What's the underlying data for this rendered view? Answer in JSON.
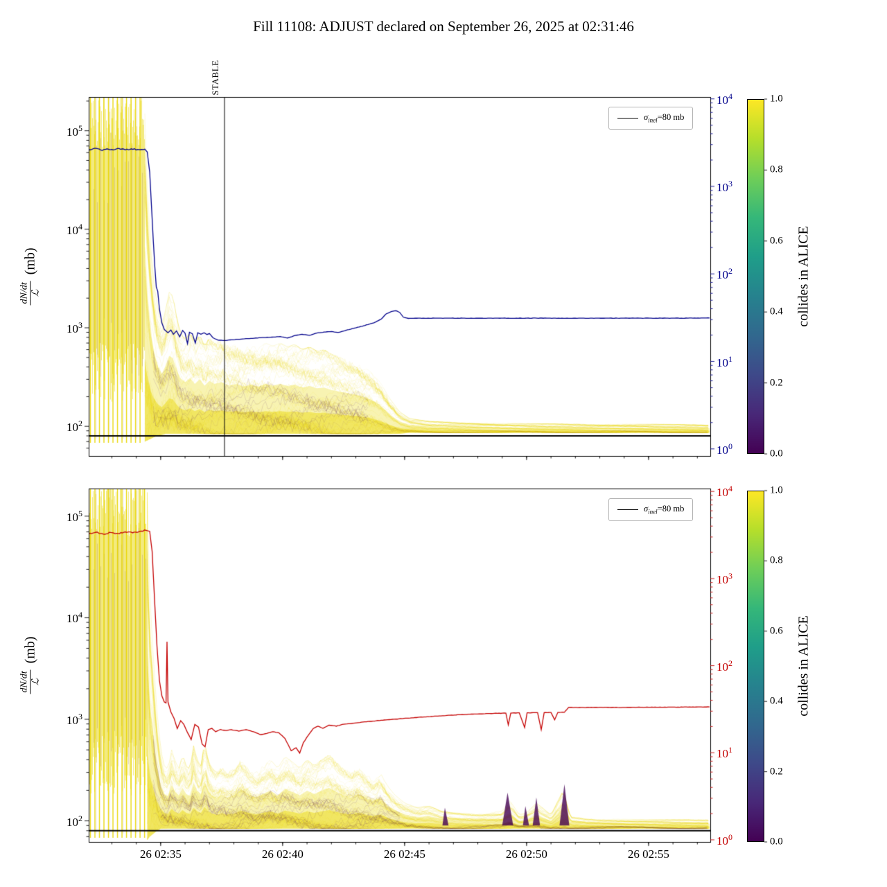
{
  "title": "Fill 11108: ADJUST declared on September 26, 2025 at 02:31:46",
  "ylabel": {
    "numerator": "dN/dt",
    "denominator": "ℒ",
    "unit": "(mb)"
  },
  "stable_label": "STABLE",
  "legend": {
    "symbol": "σ",
    "subscript": "inel",
    "suffix": "=80 mb"
  },
  "colorbar": {
    "label": "collides in ALICE",
    "tick_labels": [
      "0.0",
      "0.2",
      "0.4",
      "0.6",
      "0.8",
      "1.0"
    ],
    "gradient": [
      "#440154",
      "#482878",
      "#3e4989",
      "#31688e",
      "#26828e",
      "#1f9e89",
      "#35b779",
      "#6ece58",
      "#b5de2b",
      "#fde725"
    ]
  },
  "x_axis": {
    "minor_dt": 1,
    "ticks": [
      {
        "t": 5,
        "label": "26 02:35"
      },
      {
        "t": 10,
        "label": "26 02:40"
      },
      {
        "t": 15,
        "label": "26 02:45"
      },
      {
        "t": 20,
        "label": "26 02:50"
      },
      {
        "t": 25,
        "label": "26 02:55"
      }
    ]
  },
  "chart_data": [
    {
      "type": "line",
      "name": "top-panel",
      "x_unit": "minutes after 02:30",
      "xlim": [
        2.05,
        27.53
      ],
      "yscale": "log",
      "ylim": [
        50,
        220000
      ],
      "ylim_right": [
        0.83,
        10500
      ],
      "left_tick_exps": [
        2,
        3,
        4,
        5
      ],
      "right_tick_exps": [
        0,
        1,
        2,
        3,
        4
      ],
      "right_color": "#00008b",
      "hline": {
        "v": 80,
        "color": "#000000",
        "width": 2.2
      },
      "vline": {
        "t": 7.617
      },
      "chaos": {
        "t_end": 4.33,
        "stripe_dt": 0.185,
        "stripe_v_lo": 68
      },
      "band": {
        "yellow": "#e8d600",
        "dark": "#440154",
        "t": [
          4.35,
          4.45,
          4.6,
          4.75,
          4.9,
          5.05,
          5.2,
          5.35,
          5.5,
          5.65,
          5.8,
          6.0,
          6.2,
          6.4,
          6.6,
          6.8,
          7.0,
          7.2,
          7.5,
          7.8,
          8.1,
          8.4,
          8.7,
          9.0,
          9.3,
          9.6,
          9.9,
          10.2,
          10.5,
          10.8,
          11.1,
          11.4,
          11.7,
          12.0,
          12.4,
          12.8,
          13.2,
          13.6,
          14.0,
          14.4,
          14.8,
          15.2,
          16,
          17,
          19,
          21,
          23,
          25,
          27.5
        ],
        "hi": [
          150000,
          30000,
          6000,
          2500,
          1500,
          1100,
          1500,
          2300,
          2100,
          1300,
          900,
          750,
          900,
          700,
          850,
          650,
          800,
          700,
          750,
          650,
          700,
          620,
          680,
          620,
          700,
          650,
          700,
          640,
          680,
          600,
          640,
          580,
          600,
          540,
          500,
          460,
          420,
          360,
          280,
          190,
          140,
          120,
          112,
          110,
          107,
          106,
          105,
          105,
          104
        ],
        "lo": [
          70,
          72,
          75,
          78,
          80,
          82,
          84,
          84,
          84,
          84,
          84,
          84,
          84,
          84,
          84,
          84,
          84,
          84,
          84,
          84,
          84,
          84,
          84,
          84,
          84,
          84,
          84,
          84,
          84,
          84,
          84,
          84,
          84,
          84,
          84,
          84,
          84,
          84,
          84,
          84,
          84,
          86,
          86,
          86,
          86,
          86,
          86,
          86,
          86
        ]
      },
      "main_line": {
        "color": "#00008b",
        "width": 1.3,
        "points": [
          [
            2.05,
            64000
          ],
          [
            2.3,
            66500
          ],
          [
            2.55,
            63500
          ],
          [
            2.8,
            65500
          ],
          [
            3.05,
            64000
          ],
          [
            3.3,
            66000
          ],
          [
            3.55,
            64000
          ],
          [
            3.8,
            65500
          ],
          [
            4.05,
            64500
          ],
          [
            4.35,
            65000
          ],
          [
            4.45,
            61000
          ],
          [
            4.55,
            38000
          ],
          [
            4.63,
            16000
          ],
          [
            4.7,
            7500
          ],
          [
            4.76,
            4200
          ],
          [
            4.82,
            2600
          ],
          [
            4.88,
            2350
          ],
          [
            4.95,
            1550
          ],
          [
            5.05,
            1120
          ],
          [
            5.15,
            960
          ],
          [
            5.3,
            890
          ],
          [
            5.42,
            950
          ],
          [
            5.52,
            860
          ],
          [
            5.65,
            930
          ],
          [
            5.78,
            810
          ],
          [
            5.9,
            940
          ],
          [
            6.0,
            880
          ],
          [
            6.1,
            690
          ],
          [
            6.18,
            900
          ],
          [
            6.3,
            870
          ],
          [
            6.42,
            700
          ],
          [
            6.52,
            890
          ],
          [
            6.65,
            860
          ],
          [
            6.78,
            890
          ],
          [
            6.9,
            855
          ],
          [
            7.0,
            875
          ],
          [
            7.15,
            790
          ],
          [
            7.35,
            750
          ],
          [
            7.62,
            742
          ],
          [
            7.9,
            755
          ],
          [
            8.3,
            768
          ],
          [
            8.7,
            780
          ],
          [
            9.1,
            792
          ],
          [
            9.5,
            802
          ],
          [
            9.9,
            815
          ],
          [
            10.2,
            788
          ],
          [
            10.5,
            835
          ],
          [
            10.8,
            858
          ],
          [
            11.1,
            838
          ],
          [
            11.4,
            885
          ],
          [
            11.7,
            905
          ],
          [
            12.0,
            915
          ],
          [
            12.3,
            898
          ],
          [
            12.6,
            945
          ],
          [
            12.9,
            985
          ],
          [
            13.2,
            1030
          ],
          [
            13.5,
            1080
          ],
          [
            13.8,
            1140
          ],
          [
            14.05,
            1230
          ],
          [
            14.25,
            1390
          ],
          [
            14.45,
            1460
          ],
          [
            14.65,
            1490
          ],
          [
            14.8,
            1430
          ],
          [
            14.95,
            1280
          ],
          [
            15.15,
            1245
          ],
          [
            15.5,
            1250
          ],
          [
            16.5,
            1252
          ],
          [
            18,
            1250
          ],
          [
            20,
            1253
          ],
          [
            22,
            1250
          ],
          [
            24,
            1252
          ],
          [
            26,
            1251
          ],
          [
            27.5,
            1258
          ]
        ]
      }
    },
    {
      "type": "line",
      "name": "bottom-panel",
      "x_unit": "minutes after 02:30",
      "xlim": [
        2.05,
        27.53
      ],
      "yscale": "log",
      "ylim": [
        62,
        187000
      ],
      "ylim_right": [
        0.945,
        10800
      ],
      "left_tick_exps": [
        2,
        3,
        4,
        5
      ],
      "right_tick_exps": [
        0,
        1,
        2,
        3,
        4
      ],
      "right_color": "#c40000",
      "hline": {
        "v": 80,
        "color": "#000000",
        "width": 2.2
      },
      "chaos": {
        "t_end": 4.45,
        "stripe_dt": 0.185,
        "stripe_v_lo": 68
      },
      "band": {
        "yellow": "#e8d600",
        "dark": "#440154",
        "t": [
          4.45,
          4.55,
          4.7,
          4.85,
          5.0,
          5.15,
          5.3,
          5.45,
          5.6,
          5.75,
          5.9,
          6.05,
          6.2,
          6.35,
          6.5,
          6.65,
          6.8,
          6.95,
          7.1,
          7.3,
          7.5,
          7.7,
          8.0,
          8.3,
          8.6,
          8.9,
          9.2,
          9.5,
          9.8,
          10.1,
          10.4,
          10.7,
          11.0,
          11.3,
          11.6,
          11.9,
          12.2,
          12.5,
          12.8,
          13.1,
          13.4,
          13.7,
          14.0,
          14.3,
          14.6,
          15.0,
          15.5,
          16.0,
          16.5,
          17,
          18,
          19,
          19.3,
          19.7,
          20,
          20.4,
          21,
          21.5,
          21.8,
          22.5,
          23.5,
          25,
          27.5
        ],
        "hi": [
          150000,
          20000,
          4000,
          1200,
          500,
          350,
          320,
          500,
          380,
          330,
          450,
          350,
          320,
          550,
          400,
          350,
          600,
          400,
          330,
          300,
          340,
          300,
          330,
          420,
          350,
          300,
          350,
          400,
          330,
          430,
          380,
          330,
          400,
          350,
          400,
          450,
          380,
          330,
          300,
          350,
          300,
          260,
          300,
          220,
          180,
          150,
          135,
          140,
          125,
          120,
          118,
          125,
          160,
          115,
          120,
          150,
          115,
          200,
          110,
          105,
          104,
          103,
          103
        ],
        "lo": [
          65,
          70,
          75,
          80,
          84,
          84,
          84,
          84,
          84,
          84,
          84,
          84,
          84,
          84,
          84,
          84,
          84,
          84,
          84,
          84,
          84,
          84,
          84,
          84,
          84,
          84,
          84,
          84,
          84,
          84,
          84,
          84,
          84,
          84,
          84,
          84,
          84,
          84,
          84,
          84,
          84,
          84,
          84,
          84,
          84,
          84,
          84,
          84,
          84,
          84,
          84,
          84,
          84,
          84,
          84,
          84,
          84,
          84,
          84,
          84,
          84,
          84,
          84
        ]
      },
      "spikes": [
        {
          "t": [
            16.55,
            16.65,
            16.8
          ],
          "v": [
            90,
            135,
            90
          ]
        },
        {
          "t": [
            19.0,
            19.22,
            19.45
          ],
          "v": [
            90,
            190,
            90
          ]
        },
        {
          "t": [
            19.85,
            19.95,
            20.1
          ],
          "v": [
            90,
            140,
            90
          ]
        },
        {
          "t": [
            20.25,
            20.4,
            20.55
          ],
          "v": [
            90,
            170,
            90
          ]
        },
        {
          "t": [
            21.35,
            21.55,
            21.75
          ],
          "v": [
            90,
            230,
            90
          ]
        }
      ],
      "main_line": {
        "color": "#c40000",
        "width": 1.3,
        "points": [
          [
            2.05,
            67000
          ],
          [
            2.35,
            69500
          ],
          [
            2.65,
            66500
          ],
          [
            2.95,
            69000
          ],
          [
            3.25,
            67500
          ],
          [
            3.55,
            70000
          ],
          [
            3.85,
            68500
          ],
          [
            4.15,
            71000
          ],
          [
            4.4,
            72500
          ],
          [
            4.55,
            71000
          ],
          [
            4.65,
            45000
          ],
          [
            4.75,
            15000
          ],
          [
            4.85,
            5200
          ],
          [
            4.95,
            2400
          ],
          [
            5.05,
            1700
          ],
          [
            5.15,
            1480
          ],
          [
            5.22,
            1450
          ],
          [
            5.26,
            5800
          ],
          [
            5.3,
            1480
          ],
          [
            5.42,
            1180
          ],
          [
            5.55,
            1020
          ],
          [
            5.68,
            810
          ],
          [
            5.82,
            970
          ],
          [
            5.95,
            890
          ],
          [
            6.1,
            740
          ],
          [
            6.25,
            630
          ],
          [
            6.4,
            890
          ],
          [
            6.55,
            840
          ],
          [
            6.7,
            570
          ],
          [
            6.82,
            535
          ],
          [
            6.95,
            790
          ],
          [
            7.1,
            815
          ],
          [
            7.25,
            755
          ],
          [
            7.45,
            795
          ],
          [
            7.65,
            775
          ],
          [
            7.9,
            790
          ],
          [
            8.2,
            765
          ],
          [
            8.5,
            790
          ],
          [
            8.8,
            755
          ],
          [
            9.1,
            705
          ],
          [
            9.35,
            725
          ],
          [
            9.6,
            755
          ],
          [
            9.85,
            735
          ],
          [
            10.1,
            645
          ],
          [
            10.35,
            490
          ],
          [
            10.55,
            525
          ],
          [
            10.7,
            465
          ],
          [
            10.85,
            590
          ],
          [
            11.05,
            695
          ],
          [
            11.25,
            810
          ],
          [
            11.45,
            855
          ],
          [
            11.65,
            815
          ],
          [
            11.9,
            875
          ],
          [
            12.2,
            855
          ],
          [
            12.5,
            895
          ],
          [
            12.9,
            915
          ],
          [
            13.3,
            940
          ],
          [
            13.7,
            960
          ],
          [
            14.1,
            980
          ],
          [
            14.5,
            1000
          ],
          [
            14.9,
            1015
          ],
          [
            15.3,
            1035
          ],
          [
            15.8,
            1055
          ],
          [
            16.3,
            1075
          ],
          [
            16.8,
            1095
          ],
          [
            17.3,
            1110
          ],
          [
            17.8,
            1125
          ],
          [
            18.3,
            1135
          ],
          [
            18.8,
            1145
          ],
          [
            19.15,
            1150
          ],
          [
            19.25,
            880
          ],
          [
            19.35,
            1150
          ],
          [
            19.7,
            1158
          ],
          [
            19.92,
            830
          ],
          [
            20.02,
            1158
          ],
          [
            20.45,
            1162
          ],
          [
            20.6,
            790
          ],
          [
            20.72,
            1162
          ],
          [
            21.0,
            1168
          ],
          [
            21.15,
            990
          ],
          [
            21.28,
            1168
          ],
          [
            21.55,
            1172
          ],
          [
            21.72,
            1310
          ],
          [
            22.1,
            1305
          ],
          [
            23,
            1312
          ],
          [
            24,
            1308
          ],
          [
            25,
            1314
          ],
          [
            26,
            1318
          ],
          [
            27.5,
            1325
          ]
        ]
      }
    }
  ]
}
